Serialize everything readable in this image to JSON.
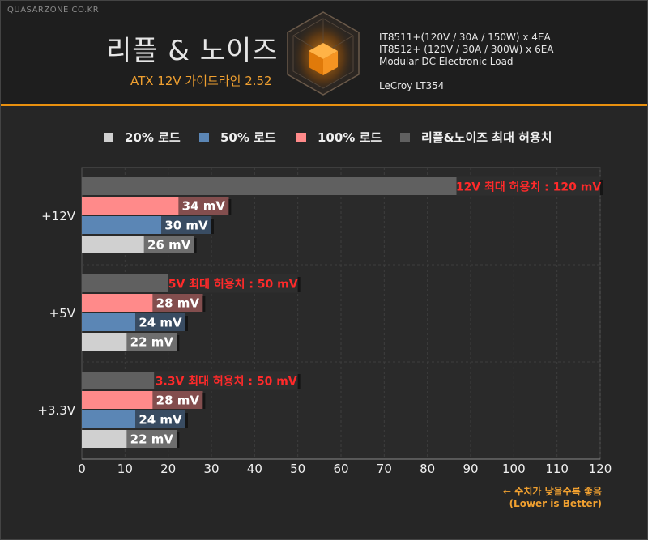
{
  "header": {
    "site": "QUASARZONE.CO.KR",
    "title": "리플 & 노이즈",
    "subtitle": "ATX 12V 가이드라인 2.52",
    "specs": [
      "IT8511+(120V / 30A / 150W) x 4EA",
      "IT8512+ (120V / 30A / 300W) x 6EA",
      "Modular DC Electronic Load",
      "LeCroy LT354"
    ]
  },
  "colors": {
    "load20": "#d0d0d0",
    "load50": "#5b86b5",
    "load100": "#ff8a8a",
    "limit": "#606060",
    "accent": "#f0a030",
    "limit_text": "#ff2a2a"
  },
  "note": {
    "line1": "← 수치가 낮을수록 좋음",
    "line2": "(Lower is Better)"
  },
  "chart_data": {
    "type": "bar",
    "orientation": "horizontal",
    "legend": [
      {
        "key": "load20",
        "label": "20% 로드"
      },
      {
        "key": "load50",
        "label": "50% 로드"
      },
      {
        "key": "load100",
        "label": "100% 로드"
      },
      {
        "key": "limit",
        "label": "리플&노이즈 최대 허용치"
      }
    ],
    "legend_position": "top",
    "categories": [
      "+12V",
      "+5V",
      "+3.3V"
    ],
    "series": [
      {
        "name": "리플&노이즈 최대 허용치",
        "key": "limit",
        "values": [
          120,
          50,
          50
        ],
        "labels": [
          "12V 최대 허용치 : 120 mV",
          "5V 최대 허용치 : 50 mV",
          "3.3V 최대 허용치 : 50 mV"
        ]
      },
      {
        "name": "100% 로드",
        "key": "load100",
        "values": [
          34,
          28,
          28
        ],
        "labels": [
          "34 mV",
          "28 mV",
          "28 mV"
        ]
      },
      {
        "name": "50% 로드",
        "key": "load50",
        "values": [
          30,
          24,
          24
        ],
        "labels": [
          "30 mV",
          "24 mV",
          "24 mV"
        ]
      },
      {
        "name": "20% 로드",
        "key": "load20",
        "values": [
          26,
          22,
          22
        ],
        "labels": [
          "26 mV",
          "22 mV",
          "22 mV"
        ]
      }
    ],
    "xlim": [
      0,
      120
    ],
    "xticks": [
      0,
      10,
      20,
      30,
      40,
      50,
      60,
      70,
      80,
      90,
      100,
      110,
      120
    ],
    "unit": "mV",
    "grid": true
  }
}
